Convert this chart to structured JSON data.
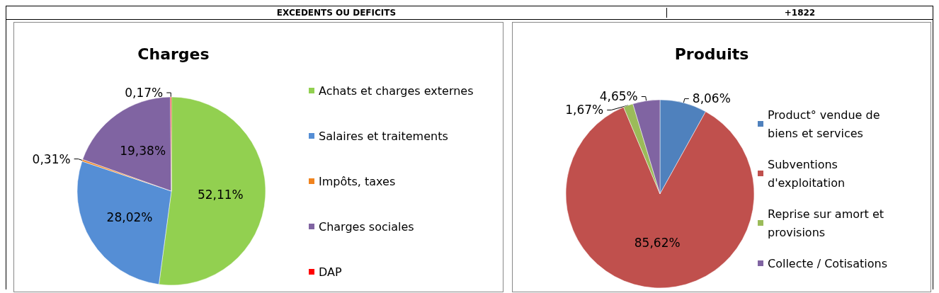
{
  "chart_data": [
    {
      "type": "pie",
      "title": "Charges",
      "annotations": [
        "EXCEDENTS OU DEFICITS",
        "+1822"
      ],
      "categories": [
        "Achats et charges externes",
        "Salaires et traitements",
        "Impôts, taxes",
        "Charges sociales",
        "DAP"
      ],
      "values": [
        52.11,
        28.02,
        0.31,
        19.38,
        0.17
      ],
      "colors": [
        "#92d050",
        "#558ed5",
        "#f0831e",
        "#8064a2",
        "#ff0000"
      ],
      "value_labels": [
        "52,11%",
        "28,02%",
        "0,31%",
        "19,38%",
        "0,17%"
      ],
      "legend": "right"
    },
    {
      "type": "pie",
      "title": "Produits",
      "categories": [
        "Product° vendue de biens et services",
        "Subventions d'exploitation",
        "Reprise sur amort et provisions",
        "Collecte / Cotisations"
      ],
      "values": [
        8.06,
        85.62,
        1.67,
        4.65
      ],
      "colors": [
        "#4f81bd",
        "#c0504d",
        "#9bbb59",
        "#8064a2"
      ],
      "value_labels": [
        "8,06%",
        "85,62%",
        "1,67%",
        "4,65%"
      ],
      "legend": "right"
    }
  ]
}
